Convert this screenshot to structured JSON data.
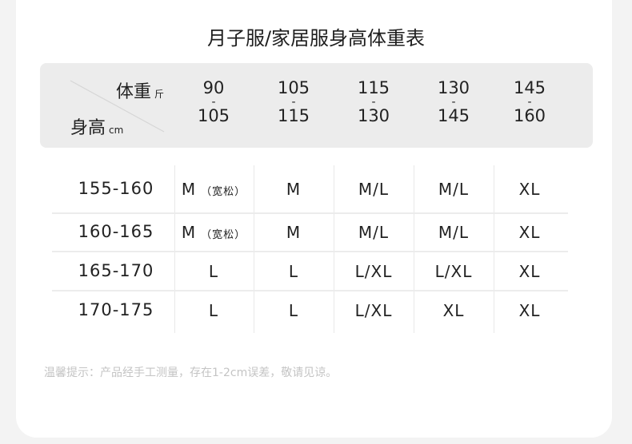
{
  "title": "月子服/家居服身高体重表",
  "header": {
    "weight_label": "体重",
    "weight_unit": "斤",
    "height_label": "身高",
    "height_unit": "cm",
    "columns": [
      {
        "from": "90",
        "sep": "-",
        "to": "105"
      },
      {
        "from": "105",
        "sep": "-",
        "to": "115"
      },
      {
        "from": "115",
        "sep": "-",
        "to": "130"
      },
      {
        "from": "130",
        "sep": "-",
        "to": "145"
      },
      {
        "from": "145",
        "sep": "-",
        "to": "160"
      }
    ]
  },
  "rows": [
    {
      "height": "155-160",
      "cells": [
        {
          "size": "M",
          "note": "（宽松）"
        },
        {
          "size": "M"
        },
        {
          "size": "M/L"
        },
        {
          "size": "M/L"
        },
        {
          "size": "XL"
        }
      ]
    },
    {
      "height": "160-165",
      "cells": [
        {
          "size": "M",
          "note": "（宽松）"
        },
        {
          "size": "M"
        },
        {
          "size": "M/L"
        },
        {
          "size": "M/L"
        },
        {
          "size": "XL"
        }
      ]
    },
    {
      "height": "165-170",
      "cells": [
        {
          "size": "L"
        },
        {
          "size": "L"
        },
        {
          "size": "L/XL"
        },
        {
          "size": "L/XL"
        },
        {
          "size": "XL"
        }
      ]
    },
    {
      "height": "170-175",
      "cells": [
        {
          "size": "L"
        },
        {
          "size": "L"
        },
        {
          "size": "L/XL"
        },
        {
          "size": "XL"
        },
        {
          "size": "XL"
        }
      ]
    }
  ],
  "note": "温馨提示：产品经手工测量，存在1-2cm误差，敬请见谅。"
}
